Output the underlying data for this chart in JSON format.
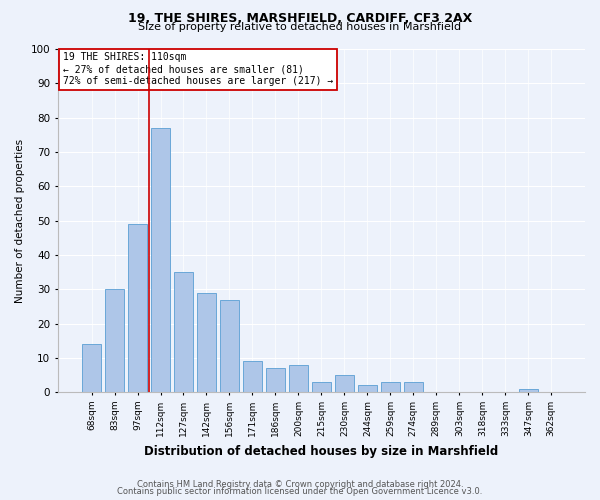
{
  "title1": "19, THE SHIRES, MARSHFIELD, CARDIFF, CF3 2AX",
  "title2": "Size of property relative to detached houses in Marshfield",
  "xlabel": "Distribution of detached houses by size in Marshfield",
  "ylabel": "Number of detached properties",
  "categories": [
    "68sqm",
    "83sqm",
    "97sqm",
    "112sqm",
    "127sqm",
    "142sqm",
    "156sqm",
    "171sqm",
    "186sqm",
    "200sqm",
    "215sqm",
    "230sqm",
    "244sqm",
    "259sqm",
    "274sqm",
    "289sqm",
    "303sqm",
    "318sqm",
    "333sqm",
    "347sqm",
    "362sqm"
  ],
  "values": [
    14,
    30,
    49,
    77,
    35,
    29,
    27,
    9,
    7,
    8,
    3,
    5,
    2,
    3,
    3,
    0,
    0,
    0,
    0,
    1,
    0
  ],
  "bar_color": "#aec6e8",
  "bar_edge_color": "#5a9fd4",
  "vline_color": "#cc0000",
  "annotation_text": "19 THE SHIRES: 110sqm\n← 27% of detached houses are smaller (81)\n72% of semi-detached houses are larger (217) →",
  "annotation_box_color": "#ffffff",
  "annotation_box_edge_color": "#cc0000",
  "footer1": "Contains HM Land Registry data © Crown copyright and database right 2024.",
  "footer2": "Contains public sector information licensed under the Open Government Licence v3.0.",
  "ylim": [
    0,
    100
  ],
  "background_color": "#edf2fb",
  "title1_fontsize": 9,
  "title2_fontsize": 8,
  "ylabel_fontsize": 7.5,
  "xlabel_fontsize": 8.5,
  "tick_fontsize": 6.5,
  "ytick_fontsize": 7.5,
  "annotation_fontsize": 7,
  "footer_fontsize": 6
}
